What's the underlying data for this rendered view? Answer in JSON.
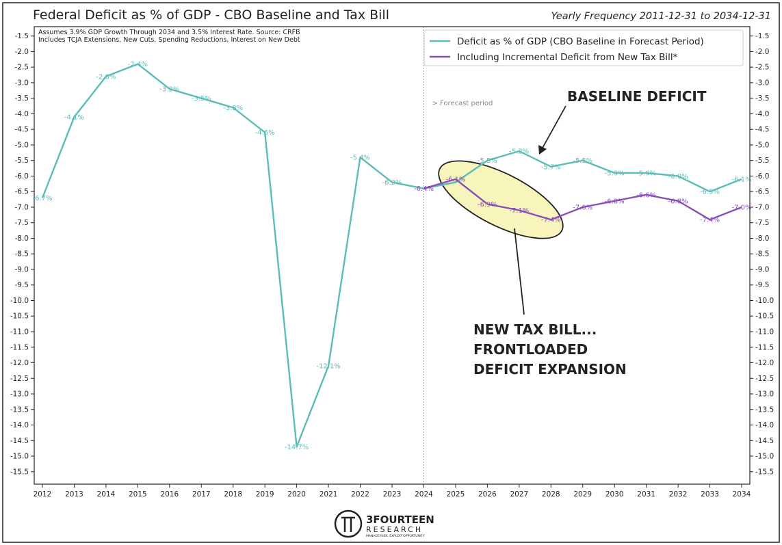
{
  "chart_data": {
    "type": "line",
    "title": "Federal Deficit as % of GDP - CBO Baseline and Tax Bill",
    "subtitle": "Yearly Frequency 2011-12-31 to 2034-12-31",
    "notes": [
      "Assumes 3.9% GDP Growth Through 2034 and 3.5% Interest Rate. Source: CRFB",
      "Includes TCJA Extensions, New Cuts, Spending Reductions, Interest on New Debt"
    ],
    "x": [
      2012,
      2013,
      2014,
      2015,
      2016,
      2017,
      2018,
      2019,
      2020,
      2021,
      2022,
      2023,
      2024,
      2025,
      2026,
      2027,
      2028,
      2029,
      2030,
      2031,
      2032,
      2033,
      2034
    ],
    "ylim": [
      -15.9,
      -1.2
    ],
    "yticks": [
      -1.5,
      -2.0,
      -2.5,
      -3.0,
      -3.5,
      -4.0,
      -4.5,
      -5.0,
      -5.5,
      -6.0,
      -6.5,
      -7.0,
      -7.5,
      -8.0,
      -8.5,
      -9.0,
      -9.5,
      -10.0,
      -10.5,
      -11.0,
      -11.5,
      -12.0,
      -12.5,
      -13.0,
      -13.5,
      -14.0,
      -14.5,
      -15.0,
      -15.5
    ],
    "series": [
      {
        "name": "Deficit as % of GDP (CBO Baseline in Forecast Period)",
        "color": "#5bbcb8",
        "x": [
          2012,
          2013,
          2014,
          2015,
          2016,
          2017,
          2018,
          2019,
          2020,
          2021,
          2022,
          2023,
          2024,
          2025,
          2026,
          2027,
          2028,
          2029,
          2030,
          2031,
          2032,
          2033,
          2034
        ],
        "values": [
          -6.7,
          -4.1,
          -2.8,
          -2.4,
          -3.2,
          -3.5,
          -3.8,
          -4.6,
          -14.7,
          -12.1,
          -5.4,
          -6.2,
          -6.4,
          -6.2,
          -5.5,
          -5.2,
          -5.7,
          -5.5,
          -5.9,
          -5.9,
          -6.0,
          -6.5,
          -6.1
        ],
        "labels": [
          "-6.7%",
          "-4.1%",
          "-2.8%",
          "-2.4%",
          "-3.2%",
          "-3.5%",
          "-3.8%",
          "-4.6%",
          "-14.7%",
          "-12.1%",
          "-5.4%",
          "-6.2%",
          "",
          "",
          "-5.5%",
          "-5.2%",
          "-5.7%",
          "-5.5%",
          "-5.9%",
          "-5.9%",
          "-6.0%",
          "-6.5%",
          "-6.1%"
        ]
      },
      {
        "name": "Including Incremental Deficit from New Tax Bill*",
        "color": "#8b4fb8",
        "x": [
          2024,
          2025,
          2026,
          2027,
          2028,
          2029,
          2030,
          2031,
          2032,
          2033,
          2034
        ],
        "values": [
          -6.4,
          -6.1,
          -6.9,
          -7.1,
          -7.4,
          -7.0,
          -6.8,
          -6.6,
          -6.8,
          -7.4,
          -7.0
        ],
        "labels": [
          "-6.4%",
          "-6.1%",
          "-6.9%",
          "-7.1%",
          "-7.4%",
          "-7.0%",
          "-6.8%",
          "-6.6%",
          "-6.8%",
          "-7.4%",
          "-7.0%"
        ]
      }
    ],
    "forecast_start": 2024,
    "forecast_label": "> Forecast period",
    "legend_position": "top-right",
    "annotations": [
      {
        "text": "BASELINE DEFICIT"
      },
      {
        "lines": [
          "NEW TAX BILL...",
          "FRONTLOADED",
          "DEFICIT EXPANSION"
        ]
      }
    ],
    "highlight_color": "#f7f5bb"
  },
  "branding": {
    "name": "3FOURTEEN",
    "sub": "RESEARCH",
    "tagline": "MANAGE RISK. EXPLOIT OPPORTUNITY"
  }
}
